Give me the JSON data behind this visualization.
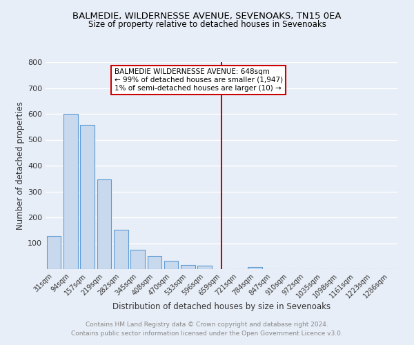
{
  "title": "BALMEDIE, WILDERNESSE AVENUE, SEVENOAKS, TN15 0EA",
  "subtitle": "Size of property relative to detached houses in Sevenoaks",
  "xlabel": "Distribution of detached houses by size in Sevenoaks",
  "ylabel": "Number of detached properties",
  "categories": [
    "31sqm",
    "94sqm",
    "157sqm",
    "219sqm",
    "282sqm",
    "345sqm",
    "408sqm",
    "470sqm",
    "533sqm",
    "596sqm",
    "659sqm",
    "721sqm",
    "784sqm",
    "847sqm",
    "910sqm",
    "972sqm",
    "1035sqm",
    "1098sqm",
    "1161sqm",
    "1223sqm",
    "1286sqm"
  ],
  "values": [
    127,
    601,
    558,
    348,
    152,
    75,
    52,
    32,
    17,
    14,
    0,
    0,
    8,
    0,
    0,
    0,
    0,
    0,
    0,
    0,
    0
  ],
  "bar_color": "#c9d9ed",
  "bar_edge_color": "#5b9bd5",
  "annotation_line_x": "659sqm",
  "annotation_line_color": "#cc0000",
  "annotation_box_text": "BALMEDIE WILDERNESSE AVENUE: 648sqm\n← 99% of detached houses are smaller (1,947)\n1% of semi-detached houses are larger (10) →",
  "annotation_box_edge_color": "#cc0000",
  "footer_line1": "Contains HM Land Registry data © Crown copyright and database right 2024.",
  "footer_line2": "Contains public sector information licensed under the Open Government Licence v3.0.",
  "ylim": [
    0,
    800
  ],
  "yticks": [
    0,
    100,
    200,
    300,
    400,
    500,
    600,
    700,
    800
  ],
  "background_color": "#e8eef7",
  "grid_color": "#ffffff",
  "title_color": "#000000",
  "footer_color": "#888888"
}
